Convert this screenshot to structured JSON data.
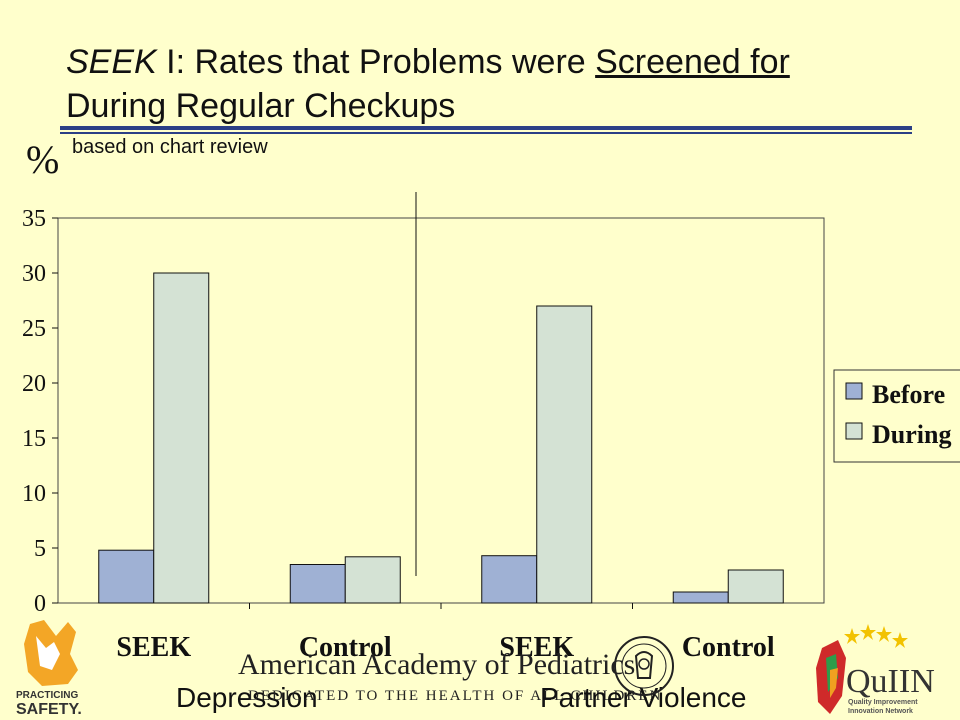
{
  "title": {
    "prefix_italic": "SEEK",
    "middle": " I: Rates that Problems were ",
    "underlined": "Screened for",
    "line2": "During Regular Checkups"
  },
  "subtitle": "based on chart review",
  "ylabel": "%",
  "colors": {
    "before": "#9fb1d4",
    "during": "#d4e2d4",
    "background": "#ffffcc",
    "rule": "#2b3f86"
  },
  "chart_data": {
    "type": "bar",
    "categories": [
      "SEEK",
      "Control",
      "SEEK",
      "Control"
    ],
    "groups": [
      "Depression",
      "Partner Violence"
    ],
    "series": [
      {
        "name": "Before",
        "values": [
          4.8,
          3.5,
          4.3,
          1.0
        ]
      },
      {
        "name": "During",
        "values": [
          30,
          4.2,
          27,
          3.0
        ]
      }
    ],
    "ylabel": "%",
    "ylim": [
      0,
      35
    ],
    "yticks": [
      0,
      5,
      10,
      15,
      20,
      25,
      30,
      35
    ],
    "grid": false,
    "legend_position": "right"
  },
  "footer": {
    "aap_name": "American Academy of Pediatrics",
    "aap_tagline": "DEDICATED TO THE HEALTH OF ALL CHILDREN",
    "left_logo_text": "PRACTICING SAFETY",
    "right_logo_text": "QuIIN",
    "right_logo_sub1": "Quality Improvement",
    "right_logo_sub2": "Innovation Network"
  }
}
